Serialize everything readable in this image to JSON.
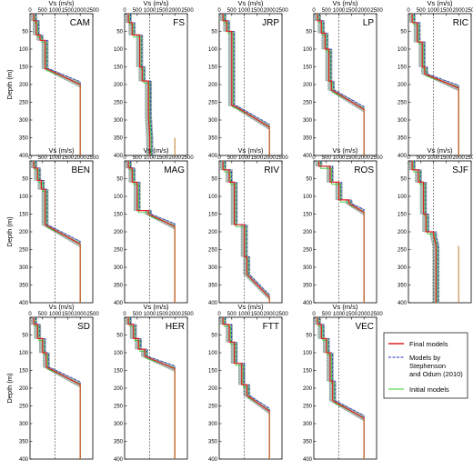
{
  "chart_data": {
    "type": "line",
    "xlabel": "Vs (m/s)",
    "ylabel": "Depth (m)",
    "xticks": [
      0,
      500,
      1000,
      1500,
      2000,
      2500
    ],
    "yticks": [
      0,
      50,
      100,
      150,
      200,
      250,
      300,
      350,
      400
    ],
    "xlim": [
      0,
      2500
    ],
    "ylim": [
      400,
      0
    ],
    "reference_vs": 1000,
    "series_styles": {
      "final": "#e02020",
      "stephenson": "#2030c0",
      "initial": "#33cc33",
      "band": "#9ab2a6",
      "base": "#c07a30"
    },
    "legend": {
      "entries": [
        {
          "key": "final",
          "label": [
            "Final models"
          ]
        },
        {
          "key": "stephenson",
          "label": [
            "Models by",
            "Stephenson",
            "and Odum (2010)"
          ]
        },
        {
          "key": "initial",
          "label": [
            "Initial models"
          ]
        }
      ]
    },
    "panels": [
      {
        "site": "CAM",
        "steps": [
          [
            5,
            150
          ],
          [
            20,
            250
          ],
          [
            60,
            400
          ],
          [
            75,
            600
          ],
          [
            155,
            650
          ]
        ],
        "halfspace_top": 200,
        "trans_start": 155
      },
      {
        "site": "FS",
        "steps": [
          [
            5,
            150
          ],
          [
            25,
            300
          ],
          [
            60,
            600
          ],
          [
            150,
            700
          ],
          [
            190,
            950
          ]
        ],
        "halfspace_top": 350,
        "trans_start": 290,
        "lower_vs": 1000
      },
      {
        "site": "JRP",
        "steps": [
          [
            5,
            150
          ],
          [
            20,
            300
          ],
          [
            50,
            500
          ],
          [
            260,
            600
          ]
        ],
        "halfspace_top": 320,
        "trans_start": 260
      },
      {
        "site": "LP",
        "steps": [
          [
            5,
            150
          ],
          [
            20,
            300
          ],
          [
            55,
            450
          ],
          [
            100,
            600
          ],
          [
            190,
            700
          ]
        ],
        "halfspace_top": 270,
        "trans_start": 215
      },
      {
        "site": "RIC",
        "steps": [
          [
            5,
            150
          ],
          [
            25,
            350
          ],
          [
            80,
            550
          ],
          [
            150,
            650
          ]
        ],
        "halfspace_top": 210,
        "trans_start": 170
      },
      {
        "site": "BEN",
        "steps": [
          [
            5,
            150
          ],
          [
            20,
            300
          ],
          [
            55,
            450
          ],
          [
            80,
            600
          ]
        ],
        "halfspace_top": 235,
        "trans_start": 180
      },
      {
        "site": "MAG",
        "steps": [
          [
            5,
            150
          ],
          [
            20,
            300
          ],
          [
            60,
            500
          ],
          [
            140,
            950
          ]
        ],
        "halfspace_top": 185,
        "trans_start": 150
      },
      {
        "site": "RIV",
        "steps": [
          [
            5,
            150
          ],
          [
            25,
            400
          ],
          [
            60,
            600
          ],
          [
            180,
            1000
          ],
          [
            270,
            1100
          ]
        ],
        "halfspace_top": 385,
        "trans_start": 320
      },
      {
        "site": "ROS",
        "steps": [
          [
            3,
            200
          ],
          [
            15,
            650
          ],
          [
            60,
            1000
          ],
          [
            110,
            1400
          ]
        ],
        "halfspace_top": 145,
        "trans_start": 120
      },
      {
        "site": "SJF",
        "steps": [
          [
            5,
            150
          ],
          [
            25,
            400
          ],
          [
            60,
            600
          ],
          [
            150,
            700
          ],
          [
            200,
            1000
          ]
        ],
        "halfspace_top": 240,
        "trans_start": 210,
        "lower_vs": 1100
      },
      {
        "site": "SD",
        "steps": [
          [
            5,
            150
          ],
          [
            20,
            300
          ],
          [
            60,
            500
          ],
          [
            100,
            650
          ]
        ],
        "halfspace_top": 190,
        "trans_start": 140
      },
      {
        "site": "HER",
        "steps": [
          [
            5,
            150
          ],
          [
            20,
            350
          ],
          [
            60,
            550
          ],
          [
            90,
            800
          ]
        ],
        "halfspace_top": 145,
        "trans_start": 110
      },
      {
        "site": "FTT",
        "steps": [
          [
            5,
            150
          ],
          [
            20,
            400
          ],
          [
            70,
            600
          ],
          [
            130,
            900
          ],
          [
            190,
            1100
          ]
        ],
        "halfspace_top": 265,
        "trans_start": 220
      },
      {
        "site": "VEC",
        "steps": [
          [
            5,
            150
          ],
          [
            20,
            300
          ],
          [
            60,
            500
          ],
          [
            100,
            650
          ],
          [
            180,
            750
          ]
        ],
        "halfspace_top": 285,
        "trans_start": 235
      }
    ]
  }
}
